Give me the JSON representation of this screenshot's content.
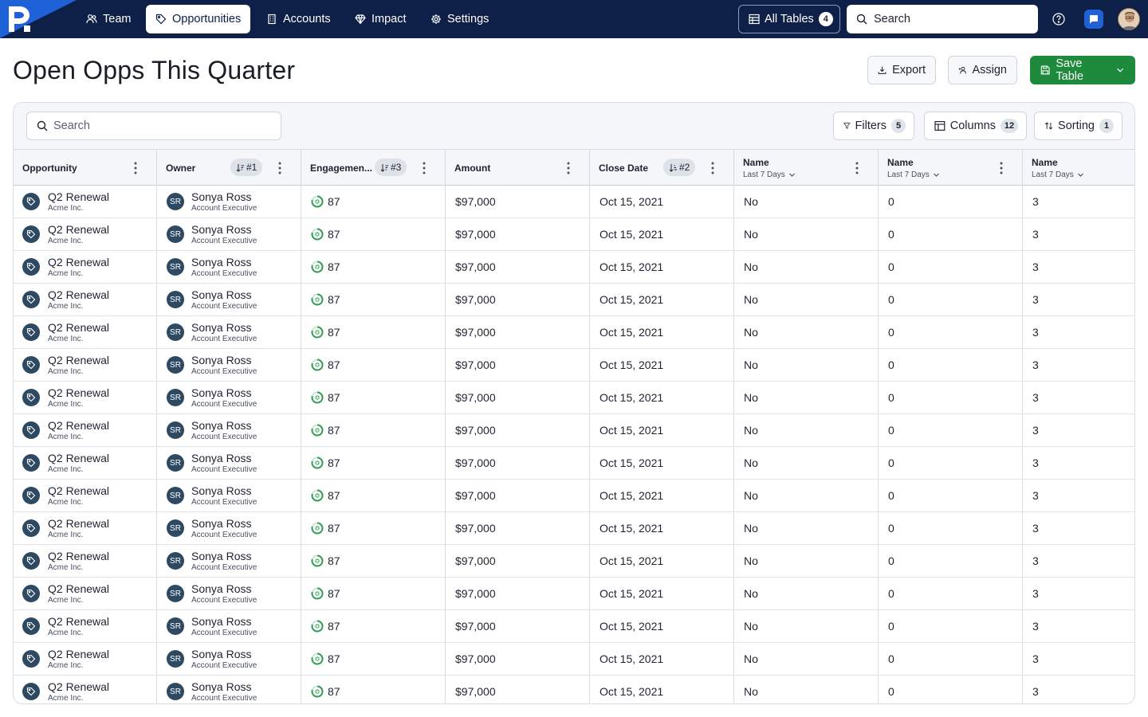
{
  "nav": {
    "tabs": [
      {
        "label": "Team",
        "icon": "team-icon",
        "active": false
      },
      {
        "label": "Opportunities",
        "icon": "tag-icon",
        "active": true
      },
      {
        "label": "Accounts",
        "icon": "building-icon",
        "active": false
      },
      {
        "label": "Impact",
        "icon": "diamond-icon",
        "active": false
      },
      {
        "label": "Settings",
        "icon": "gear-icon",
        "active": false
      }
    ],
    "all_tables_label": "All Tables",
    "all_tables_count": "4",
    "search_placeholder": "Search"
  },
  "header": {
    "title": "Open Opps This Quarter",
    "export_label": "Export",
    "assign_label": "Assign",
    "save_label": "Save Table"
  },
  "toolbar": {
    "search_placeholder": "Search",
    "filters_label": "Filters",
    "filters_count": "5",
    "columns_label": "Columns",
    "columns_count": "12",
    "sorting_label": "Sorting",
    "sorting_count": "1"
  },
  "columns": [
    {
      "label": "Opportunity",
      "sub": "",
      "sort": ""
    },
    {
      "label": "Owner",
      "sub": "",
      "sort": "#1"
    },
    {
      "label": "Engagemen...",
      "sub": "",
      "sort": "#3"
    },
    {
      "label": "Amount",
      "sub": "",
      "sort": ""
    },
    {
      "label": "Close Date",
      "sub": "",
      "sort": "#2"
    },
    {
      "label": "Name",
      "sub": "Last 7 Days",
      "sort": ""
    },
    {
      "label": "Name",
      "sub": "Last 7 Days",
      "sort": ""
    },
    {
      "label": "Name",
      "sub": "Last 7 Days",
      "sort": ""
    }
  ],
  "rows": [
    {
      "opportunity": "Q2 Renewal",
      "account": "Acme Inc.",
      "owner_initials": "SR",
      "owner_name": "Sonya Ross",
      "owner_title": "Account Executive",
      "engagement": "87",
      "amount": "$97,000",
      "close_date": "Oct 15, 2021",
      "name1": "No",
      "name2": "0",
      "name3": "3"
    },
    {
      "opportunity": "Q2 Renewal",
      "account": "Acme Inc.",
      "owner_initials": "SR",
      "owner_name": "Sonya Ross",
      "owner_title": "Account Executive",
      "engagement": "87",
      "amount": "$97,000",
      "close_date": "Oct 15, 2021",
      "name1": "No",
      "name2": "0",
      "name3": "3"
    },
    {
      "opportunity": "Q2 Renewal",
      "account": "Acme Inc.",
      "owner_initials": "SR",
      "owner_name": "Sonya Ross",
      "owner_title": "Account Executive",
      "engagement": "87",
      "amount": "$97,000",
      "close_date": "Oct 15, 2021",
      "name1": "No",
      "name2": "0",
      "name3": "3"
    },
    {
      "opportunity": "Q2 Renewal",
      "account": "Acme Inc.",
      "owner_initials": "SR",
      "owner_name": "Sonya Ross",
      "owner_title": "Account Executive",
      "engagement": "87",
      "amount": "$97,000",
      "close_date": "Oct 15, 2021",
      "name1": "No",
      "name2": "0",
      "name3": "3"
    },
    {
      "opportunity": "Q2 Renewal",
      "account": "Acme Inc.",
      "owner_initials": "SR",
      "owner_name": "Sonya Ross",
      "owner_title": "Account Executive",
      "engagement": "87",
      "amount": "$97,000",
      "close_date": "Oct 15, 2021",
      "name1": "No",
      "name2": "0",
      "name3": "3"
    },
    {
      "opportunity": "Q2 Renewal",
      "account": "Acme Inc.",
      "owner_initials": "SR",
      "owner_name": "Sonya Ross",
      "owner_title": "Account Executive",
      "engagement": "87",
      "amount": "$97,000",
      "close_date": "Oct 15, 2021",
      "name1": "No",
      "name2": "0",
      "name3": "3"
    },
    {
      "opportunity": "Q2 Renewal",
      "account": "Acme Inc.",
      "owner_initials": "SR",
      "owner_name": "Sonya Ross",
      "owner_title": "Account Executive",
      "engagement": "87",
      "amount": "$97,000",
      "close_date": "Oct 15, 2021",
      "name1": "No",
      "name2": "0",
      "name3": "3"
    },
    {
      "opportunity": "Q2 Renewal",
      "account": "Acme Inc.",
      "owner_initials": "SR",
      "owner_name": "Sonya Ross",
      "owner_title": "Account Executive",
      "engagement": "87",
      "amount": "$97,000",
      "close_date": "Oct 15, 2021",
      "name1": "No",
      "name2": "0",
      "name3": "3"
    },
    {
      "opportunity": "Q2 Renewal",
      "account": "Acme Inc.",
      "owner_initials": "SR",
      "owner_name": "Sonya Ross",
      "owner_title": "Account Executive",
      "engagement": "87",
      "amount": "$97,000",
      "close_date": "Oct 15, 2021",
      "name1": "No",
      "name2": "0",
      "name3": "3"
    },
    {
      "opportunity": "Q2 Renewal",
      "account": "Acme Inc.",
      "owner_initials": "SR",
      "owner_name": "Sonya Ross",
      "owner_title": "Account Executive",
      "engagement": "87",
      "amount": "$97,000",
      "close_date": "Oct 15, 2021",
      "name1": "No",
      "name2": "0",
      "name3": "3"
    },
    {
      "opportunity": "Q2 Renewal",
      "account": "Acme Inc.",
      "owner_initials": "SR",
      "owner_name": "Sonya Ross",
      "owner_title": "Account Executive",
      "engagement": "87",
      "amount": "$97,000",
      "close_date": "Oct 15, 2021",
      "name1": "No",
      "name2": "0",
      "name3": "3"
    },
    {
      "opportunity": "Q2 Renewal",
      "account": "Acme Inc.",
      "owner_initials": "SR",
      "owner_name": "Sonya Ross",
      "owner_title": "Account Executive",
      "engagement": "87",
      "amount": "$97,000",
      "close_date": "Oct 15, 2021",
      "name1": "No",
      "name2": "0",
      "name3": "3"
    },
    {
      "opportunity": "Q2 Renewal",
      "account": "Acme Inc.",
      "owner_initials": "SR",
      "owner_name": "Sonya Ross",
      "owner_title": "Account Executive",
      "engagement": "87",
      "amount": "$97,000",
      "close_date": "Oct 15, 2021",
      "name1": "No",
      "name2": "0",
      "name3": "3"
    },
    {
      "opportunity": "Q2 Renewal",
      "account": "Acme Inc.",
      "owner_initials": "SR",
      "owner_name": "Sonya Ross",
      "owner_title": "Account Executive",
      "engagement": "87",
      "amount": "$97,000",
      "close_date": "Oct 15, 2021",
      "name1": "No",
      "name2": "0",
      "name3": "3"
    },
    {
      "opportunity": "Q2 Renewal",
      "account": "Acme Inc.",
      "owner_initials": "SR",
      "owner_name": "Sonya Ross",
      "owner_title": "Account Executive",
      "engagement": "87",
      "amount": "$97,000",
      "close_date": "Oct 15, 2021",
      "name1": "No",
      "name2": "0",
      "name3": "3"
    },
    {
      "opportunity": "Q2 Renewal",
      "account": "Acme Inc.",
      "owner_initials": "SR",
      "owner_name": "Sonya Ross",
      "owner_title": "Account Executive",
      "engagement": "87",
      "amount": "$97,000",
      "close_date": "Oct 15, 2021",
      "name1": "No",
      "name2": "0",
      "name3": "3"
    }
  ],
  "colors": {
    "nav_bg": "#0e2048",
    "brand_blue": "#1f62d8",
    "save_green": "#1e8a3c",
    "avatar_bg": "#2e4a63",
    "engagement_green": "#2f9e52"
  }
}
